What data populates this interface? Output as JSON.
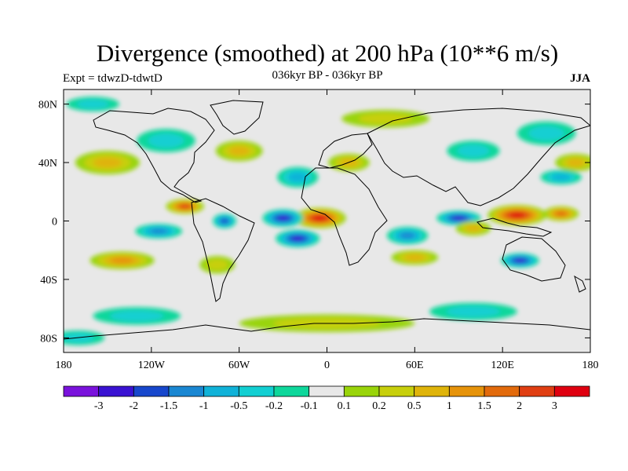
{
  "title": "Divergence (smoothed) at 200 hPa (10**6 m/s)",
  "experiment_label": "Expt = tdwzD-tdwtD",
  "period_label": "036kyr BP - 036kyr BP",
  "season_label": "JJA",
  "axes": {
    "lon_ticks": [
      {
        "label": "180",
        "value": -180
      },
      {
        "label": "120W",
        "value": -120
      },
      {
        "label": "60W",
        "value": -60
      },
      {
        "label": "0",
        "value": 0
      },
      {
        "label": "60E",
        "value": 60
      },
      {
        "label": "120E",
        "value": 120
      },
      {
        "label": "180",
        "value": 180
      }
    ],
    "lat_ticks": [
      {
        "label": "80N",
        "value": 80
      },
      {
        "label": "40N",
        "value": 40
      },
      {
        "label": "0",
        "value": 0
      },
      {
        "label": "40S",
        "value": -40
      },
      {
        "label": "80S",
        "value": -80
      }
    ],
    "lon_range": [
      -180,
      180
    ],
    "lat_range": [
      -90,
      90
    ]
  },
  "colorbar": {
    "colors": [
      "#7a12dc",
      "#3a12d2",
      "#1747cc",
      "#1a87d2",
      "#10b2d8",
      "#12cfd2",
      "#0ed79b",
      "#e8e8e8",
      "#99d40a",
      "#c7cf0c",
      "#dfb40a",
      "#e6930a",
      "#e26a0c",
      "#e03e12",
      "#df0010"
    ],
    "labels": [
      "-3",
      "-2",
      "-1.5",
      "-1",
      "-0.5",
      "-0.2",
      "-0.1",
      "0.1",
      "0.2",
      "0.5",
      "1",
      "1.5",
      "2",
      "3"
    ]
  },
  "chart_data": {
    "type": "heatmap",
    "variable": "Divergence (smoothed) at 200 hPa",
    "units": "10**6 m/s",
    "projection": "cylindrical equidistant",
    "season": "JJA",
    "levels": [
      -3,
      -2,
      -1.5,
      -1,
      -0.5,
      -0.2,
      -0.1,
      0.1,
      0.2,
      0.5,
      1,
      1.5,
      2,
      3
    ],
    "features": [
      {
        "lon": -5,
        "lat": 2,
        "value": 3.5,
        "rx": 18,
        "ry": 7
      },
      {
        "lon": 130,
        "lat": 4,
        "value": 3.3,
        "rx": 20,
        "ry": 7
      },
      {
        "lon": -97,
        "lat": 10,
        "value": 2.0,
        "rx": 13,
        "ry": 5
      },
      {
        "lon": 160,
        "lat": 5,
        "value": 1.5,
        "rx": 12,
        "ry": 5
      },
      {
        "lon": -140,
        "lat": -27,
        "value": 1.2,
        "rx": 22,
        "ry": 6
      },
      {
        "lon": -30,
        "lat": 2,
        "value": -2.6,
        "rx": 14,
        "ry": 6
      },
      {
        "lon": -20,
        "lat": -12,
        "value": -2.7,
        "rx": 15,
        "ry": 6
      },
      {
        "lon": 90,
        "lat": 2,
        "value": -2.4,
        "rx": 15,
        "ry": 5
      },
      {
        "lon": 132,
        "lat": -27,
        "value": -2.3,
        "rx": 13,
        "ry": 5
      },
      {
        "lon": -70,
        "lat": 0,
        "value": -1.7,
        "rx": 8,
        "ry": 5
      },
      {
        "lon": -115,
        "lat": -7,
        "value": -1.2,
        "rx": 16,
        "ry": 5
      },
      {
        "lon": 55,
        "lat": -10,
        "value": -1.0,
        "rx": 14,
        "ry": 6
      },
      {
        "lon": 60,
        "lat": -25,
        "value": 0.8,
        "rx": 16,
        "ry": 5
      },
      {
        "lon": 100,
        "lat": -5,
        "value": 0.7,
        "rx": 12,
        "ry": 5
      },
      {
        "lon": 170,
        "lat": 40,
        "value": 0.6,
        "rx": 14,
        "ry": 6
      },
      {
        "lon": -150,
        "lat": 40,
        "value": 0.5,
        "rx": 22,
        "ry": 8
      },
      {
        "lon": -60,
        "lat": 48,
        "value": 0.5,
        "rx": 16,
        "ry": 7
      },
      {
        "lon": 15,
        "lat": 40,
        "value": 0.5,
        "rx": 14,
        "ry": 6
      },
      {
        "lon": -75,
        "lat": -30,
        "value": 0.4,
        "rx": 12,
        "ry": 6
      },
      {
        "lon": 100,
        "lat": 48,
        "value": -0.4,
        "rx": 18,
        "ry": 7
      },
      {
        "lon": -20,
        "lat": 30,
        "value": -0.5,
        "rx": 14,
        "ry": 7
      },
      {
        "lon": -110,
        "lat": 55,
        "value": -0.4,
        "rx": 20,
        "ry": 8
      },
      {
        "lon": 150,
        "lat": 60,
        "value": -0.3,
        "rx": 20,
        "ry": 8
      },
      {
        "lon": 160,
        "lat": 30,
        "value": -0.5,
        "rx": 14,
        "ry": 5
      },
      {
        "lon": 0,
        "lat": -70,
        "value": 0.3,
        "rx": 60,
        "ry": 6
      },
      {
        "lon": -130,
        "lat": -65,
        "value": -0.3,
        "rx": 30,
        "ry": 6
      },
      {
        "lon": 100,
        "lat": -62,
        "value": -0.3,
        "rx": 30,
        "ry": 6
      },
      {
        "lon": -170,
        "lat": -80,
        "value": -0.4,
        "rx": 18,
        "ry": 5
      },
      {
        "lon": 40,
        "lat": 70,
        "value": 0.3,
        "rx": 30,
        "ry": 6
      },
      {
        "lon": -160,
        "lat": 80,
        "value": -0.3,
        "rx": 18,
        "ry": 5
      }
    ]
  }
}
